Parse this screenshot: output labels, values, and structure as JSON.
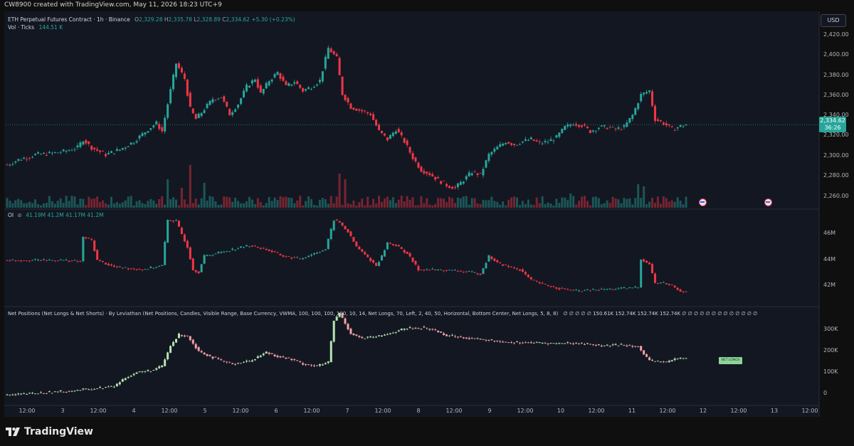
{
  "header": {
    "attribution": "CW8900 created with TradingView.com, May 11, 2026 18:23 UTC+9"
  },
  "footer": {
    "brand": "TradingView"
  },
  "price_pane": {
    "symbol": "ETH Perpetual Futures Contract · 1h · Binance",
    "o_label": "O",
    "o": "2,329.28",
    "h_label": "H",
    "h": "2,335.78",
    "l_label": "L",
    "l": "2,328.89",
    "c_label": "C",
    "c": "2,334.62",
    "change": "+5.30 (+0.23%)",
    "vol_label": "Vol · Ticks",
    "vol_value": "144.51 K",
    "currency": "USD",
    "last_price": "2,334.62",
    "countdown": "36:26"
  },
  "oi_pane": {
    "label": "OI",
    "values": "41.19M  41.2M  41.17M  41.2M"
  },
  "net_pane": {
    "label": "Net Positions (Net Longs & Net Shorts) · By Leviathan (Net Positions, Candles, Visible Range, Base Currency, VWMA, 100, 100, 100, 100, 10, 14, Net Longs, 70, Left, 2, 40, 50, Horizontal, Bottom Center, Net Longs, 5, 8, 8)",
    "values": "∅  ∅  ∅  ∅  ∅  150.61K  152.74K  152.74K  152.74K  ∅  ∅  ∅  ∅  ∅  ∅  ∅  ∅  ∅  ∅  ∅  ∅  ∅",
    "tag": "NET LONGS"
  },
  "colors": {
    "up": "#26a69a",
    "down": "#f23645",
    "net_up": "#b5e6b0",
    "net_down": "#f7a1a8"
  },
  "chart_data": [
    {
      "type": "candlestick",
      "title": "ETH Perpetual Futures Contract · 1h · Binance",
      "y_ticks": [
        "2,420.00",
        "2,400.00",
        "2,380.00",
        "2,360.00",
        "2,340.00",
        "2,320.00",
        "2,300.00",
        "2,280.00",
        "2,260.00"
      ],
      "ylim": [
        2252,
        2428
      ],
      "x_ticks": [
        "12:00",
        "3",
        "12:00",
        "4",
        "12:00",
        "5",
        "12:00",
        "6",
        "12:00",
        "7",
        "12:00",
        "8",
        "12:00",
        "9",
        "12:00",
        "10",
        "12:00",
        "11",
        "12:00",
        "12",
        "12:00",
        "13",
        "12:00"
      ],
      "close_path": [
        [
          0,
          2295
        ],
        [
          4,
          2300
        ],
        [
          10,
          2305
        ],
        [
          15,
          2306
        ],
        [
          20,
          2308
        ],
        [
          25,
          2312
        ],
        [
          27,
          2320
        ],
        [
          30,
          2312
        ],
        [
          35,
          2305
        ],
        [
          40,
          2310
        ],
        [
          45,
          2318
        ],
        [
          50,
          2330
        ],
        [
          53,
          2336
        ],
        [
          55,
          2328
        ],
        [
          57,
          2355
        ],
        [
          60,
          2395
        ],
        [
          63,
          2380
        ],
        [
          65,
          2350
        ],
        [
          67,
          2340
        ],
        [
          70,
          2350
        ],
        [
          73,
          2360
        ],
        [
          76,
          2362
        ],
        [
          79,
          2345
        ],
        [
          82,
          2355
        ],
        [
          85,
          2372
        ],
        [
          88,
          2380
        ],
        [
          90,
          2365
        ],
        [
          93,
          2378
        ],
        [
          96,
          2386
        ],
        [
          99,
          2372
        ],
        [
          102,
          2377
        ],
        [
          105,
          2368
        ],
        [
          108,
          2372
        ],
        [
          111,
          2378
        ],
        [
          114,
          2410
        ],
        [
          117,
          2400
        ],
        [
          119,
          2365
        ],
        [
          122,
          2352
        ],
        [
          126,
          2348
        ],
        [
          129,
          2345
        ],
        [
          132,
          2328
        ],
        [
          135,
          2320
        ],
        [
          138,
          2330
        ],
        [
          141,
          2318
        ],
        [
          144,
          2302
        ],
        [
          147,
          2290
        ],
        [
          150,
          2286
        ],
        [
          153,
          2280
        ],
        [
          156,
          2275
        ],
        [
          159,
          2272
        ],
        [
          162,
          2280
        ],
        [
          165,
          2288
        ],
        [
          168,
          2285
        ],
        [
          171,
          2305
        ],
        [
          174,
          2312
        ],
        [
          177,
          2318
        ],
        [
          180,
          2315
        ],
        [
          183,
          2318
        ],
        [
          186,
          2320
        ],
        [
          189,
          2316
        ],
        [
          192,
          2318
        ],
        [
          195,
          2322
        ],
        [
          198,
          2332
        ],
        [
          201,
          2336
        ],
        [
          204,
          2334
        ],
        [
          207,
          2328
        ],
        [
          210,
          2332
        ],
        [
          213,
          2332
        ],
        [
          216,
          2330
        ],
        [
          219,
          2332
        ],
        [
          222,
          2344
        ],
        [
          225,
          2364
        ],
        [
          228,
          2368
        ],
        [
          230,
          2340
        ],
        [
          233,
          2336
        ],
        [
          236,
          2330
        ],
        [
          239,
          2333
        ],
        [
          241,
          2334.62
        ]
      ],
      "volume_spikes": [
        [
          57,
          40
        ],
        [
          62,
          28
        ],
        [
          65,
          60
        ],
        [
          70,
          35
        ],
        [
          118,
          48
        ],
        [
          120,
          40
        ],
        [
          200,
          20
        ],
        [
          224,
          33
        ],
        [
          226,
          30
        ]
      ]
    },
    {
      "type": "candlestick",
      "title": "OI",
      "y_ticks": [
        "46M",
        "44M",
        "42M"
      ],
      "ylim": [
        40.2,
        47.2
      ],
      "close_path": [
        [
          0,
          43.5
        ],
        [
          20,
          43.5
        ],
        [
          26,
          43.4
        ],
        [
          27,
          45.2
        ],
        [
          30,
          45.0
        ],
        [
          32,
          43.5
        ],
        [
          38,
          43.0
        ],
        [
          48,
          42.8
        ],
        [
          55,
          43.1
        ],
        [
          57,
          46.5
        ],
        [
          60,
          46.4
        ],
        [
          64,
          44.5
        ],
        [
          66,
          42.8
        ],
        [
          68,
          42.6
        ],
        [
          70,
          43.8
        ],
        [
          80,
          44.3
        ],
        [
          86,
          44.6
        ],
        [
          92,
          44.3
        ],
        [
          98,
          43.8
        ],
        [
          104,
          43.6
        ],
        [
          110,
          44.1
        ],
        [
          113,
          44.3
        ],
        [
          116,
          46.5
        ],
        [
          118,
          46.3
        ],
        [
          121,
          45.6
        ],
        [
          124,
          44.5
        ],
        [
          128,
          43.7
        ],
        [
          131,
          43.1
        ],
        [
          133,
          43.8
        ],
        [
          135,
          44.8
        ],
        [
          138,
          44.6
        ],
        [
          142,
          44.0
        ],
        [
          146,
          42.8
        ],
        [
          150,
          42.8
        ],
        [
          160,
          42.7
        ],
        [
          164,
          42.6
        ],
        [
          168,
          42.5
        ],
        [
          171,
          43.8
        ],
        [
          174,
          43.3
        ],
        [
          178,
          43.0
        ],
        [
          182,
          42.8
        ],
        [
          186,
          42.0
        ],
        [
          190,
          41.7
        ],
        [
          196,
          41.4
        ],
        [
          202,
          41.2
        ],
        [
          210,
          41.3
        ],
        [
          220,
          41.4
        ],
        [
          224,
          41.5
        ],
        [
          225,
          43.6
        ],
        [
          228,
          43.2
        ],
        [
          230,
          41.8
        ],
        [
          233,
          41.8
        ],
        [
          236,
          41.6
        ],
        [
          239,
          41.2
        ],
        [
          241,
          41.2
        ]
      ]
    },
    {
      "type": "candlestick",
      "title": "Net Positions (Net Longs & Net Shorts)",
      "y_ticks": [
        "300K",
        "200K",
        "100K",
        "0"
      ],
      "ylim": [
        -30000,
        345000
      ],
      "close_path": [
        [
          0,
          5000
        ],
        [
          10,
          12000
        ],
        [
          20,
          20000
        ],
        [
          25,
          25000
        ],
        [
          30,
          30000
        ],
        [
          38,
          40000
        ],
        [
          42,
          75000
        ],
        [
          46,
          95000
        ],
        [
          52,
          105000
        ],
        [
          55,
          120000
        ],
        [
          58,
          200000
        ],
        [
          61,
          245000
        ],
        [
          64,
          240000
        ],
        [
          68,
          180000
        ],
        [
          72,
          160000
        ],
        [
          76,
          140000
        ],
        [
          80,
          130000
        ],
        [
          86,
          140000
        ],
        [
          92,
          175000
        ],
        [
          96,
          160000
        ],
        [
          100,
          150000
        ],
        [
          105,
          130000
        ],
        [
          110,
          120000
        ],
        [
          114,
          135000
        ],
        [
          116,
          300000
        ],
        [
          118,
          330000
        ],
        [
          122,
          250000
        ],
        [
          126,
          230000
        ],
        [
          132,
          238000
        ],
        [
          138,
          258000
        ],
        [
          142,
          270000
        ],
        [
          148,
          272000
        ],
        [
          152,
          262000
        ],
        [
          156,
          242000
        ],
        [
          162,
          235000
        ],
        [
          168,
          225000
        ],
        [
          172,
          222000
        ],
        [
          178,
          215000
        ],
        [
          182,
          215000
        ],
        [
          188,
          212000
        ],
        [
          194,
          210000
        ],
        [
          200,
          212000
        ],
        [
          206,
          208000
        ],
        [
          212,
          200000
        ],
        [
          218,
          205000
        ],
        [
          224,
          200000
        ],
        [
          226,
          165000
        ],
        [
          228,
          140000
        ],
        [
          231,
          140000
        ],
        [
          234,
          135000
        ],
        [
          237,
          148000
        ],
        [
          241,
          152740
        ]
      ]
    }
  ]
}
